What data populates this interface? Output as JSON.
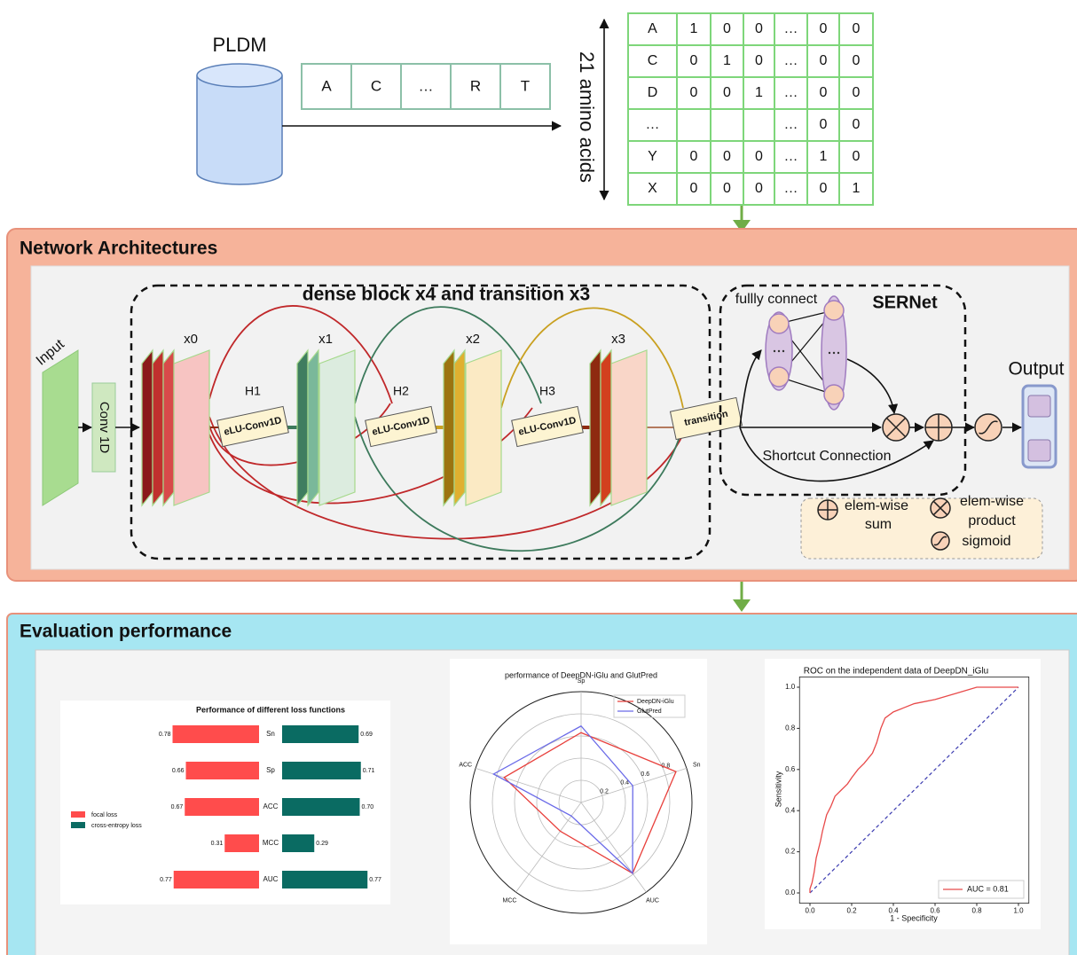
{
  "input_section": {
    "database": "PLDM",
    "sequence": [
      "A",
      "C",
      "…",
      "R",
      "T"
    ],
    "axis_label": "21 amino acids",
    "matrix": [
      [
        "A",
        "1",
        "0",
        "0",
        "…",
        "0",
        "0"
      ],
      [
        "C",
        "0",
        "1",
        "0",
        "…",
        "0",
        "0"
      ],
      [
        "D",
        "0",
        "0",
        "1",
        "…",
        "0",
        "0"
      ],
      [
        "…",
        null,
        null,
        null,
        "…",
        "0",
        "0"
      ],
      [
        "Y",
        "0",
        "0",
        "0",
        "…",
        "1",
        "0"
      ],
      [
        "X",
        "0",
        "0",
        "0",
        "…",
        "0",
        "1"
      ]
    ]
  },
  "network": {
    "title": "Network Architectures",
    "dense_title": "dense block x4 and transition x3",
    "input": "Input",
    "conv": "Conv 1D",
    "features": [
      "x0",
      "x1",
      "x2",
      "x3"
    ],
    "layers": [
      {
        "name": "H1",
        "op": "eLU-Conv1D"
      },
      {
        "name": "H2",
        "op": "eLU-Conv1D"
      },
      {
        "name": "H3",
        "op": "eLU-Conv1D"
      }
    ],
    "transition": "transition",
    "sernet": {
      "title": "SERNet",
      "fc": "fullly connect",
      "shortcut": "Shortcut Connection"
    },
    "output": "Output",
    "legend": {
      "sum": [
        "elem-wise",
        "sum"
      ],
      "product": [
        "elem-wise",
        "product"
      ],
      "sigmoid": "sigmoid"
    }
  },
  "evaluation": {
    "title": "Evaluation performance"
  },
  "chart_data": [
    {
      "type": "bar",
      "title": "Performance of different loss functions",
      "categories": [
        "Sn",
        "Sp",
        "ACC",
        "MCC",
        "AUC"
      ],
      "series": [
        {
          "name": "focal loss",
          "color": "#ff4c4c",
          "values": [
            0.78,
            0.66,
            0.67,
            0.31,
            0.77
          ]
        },
        {
          "name": "cross-entropy loss",
          "color": "#0a6b62",
          "values": [
            0.69,
            0.71,
            0.7,
            0.29,
            0.77
          ],
          "value_labels": [
            "0.69",
            "0.71",
            "0.70",
            "0.29",
            "0.77"
          ]
        }
      ]
    },
    {
      "type": "radar",
      "title": "performance of DeepDN-iGlu and GlutPred",
      "categories": [
        "Sp",
        "Sn",
        "AUC",
        "MCC",
        "ACC"
      ],
      "rlim": [
        0,
        1
      ],
      "rticks": [
        0.2,
        0.4,
        0.6,
        0.8
      ],
      "legend": "upper right",
      "series": [
        {
          "name": "DeepDN-iGlu",
          "color": "#e8403c",
          "values": [
            0.63,
            0.9,
            0.79,
            0.32,
            0.73
          ]
        },
        {
          "name": "GlutPred",
          "color": "#6a6ae8",
          "values": [
            0.69,
            0.49,
            0.79,
            0.15,
            0.83
          ]
        }
      ]
    },
    {
      "type": "line",
      "title": "ROC on the independent data of DeepDN_iGlu",
      "xlabel": "1 - Specificity",
      "ylabel": "Sensitivity",
      "xlim": [
        -0.05,
        1.05
      ],
      "ylim": [
        -0.05,
        1.05
      ],
      "xticks": [
        {
          "value": 0,
          "label": "0.0"
        },
        0.2,
        0.4,
        0.6,
        0.8,
        {
          "value": 1,
          "label": "1.0"
        }
      ],
      "yticks": [
        {
          "value": 0,
          "label": "0.0"
        },
        0.2,
        0.4,
        0.6,
        0.8,
        {
          "value": 1,
          "label": "1.0"
        }
      ],
      "legend": "lower right",
      "series": [
        {
          "name": "AUC = 0.81",
          "color": "#e84a4a",
          "x": [
            0,
            0,
            0.01,
            0.02,
            0.03,
            0.05,
            0.06,
            0.08,
            0.1,
            0.12,
            0.15,
            0.18,
            0.2,
            0.23,
            0.26,
            0.3,
            0.32,
            0.34,
            0.36,
            0.4,
            0.45,
            0.5,
            0.6,
            0.7,
            0.8,
            1
          ],
          "values": [
            0,
            0.02,
            0.05,
            0.1,
            0.17,
            0.25,
            0.3,
            0.38,
            0.42,
            0.47,
            0.5,
            0.53,
            0.56,
            0.6,
            0.63,
            0.68,
            0.73,
            0.8,
            0.85,
            0.88,
            0.9,
            0.92,
            0.94,
            0.97,
            1,
            1
          ]
        }
      ],
      "reference_line": {
        "color": "#3b3bb0",
        "x": [
          0,
          1
        ],
        "values": [
          0,
          1
        ]
      }
    }
  ]
}
